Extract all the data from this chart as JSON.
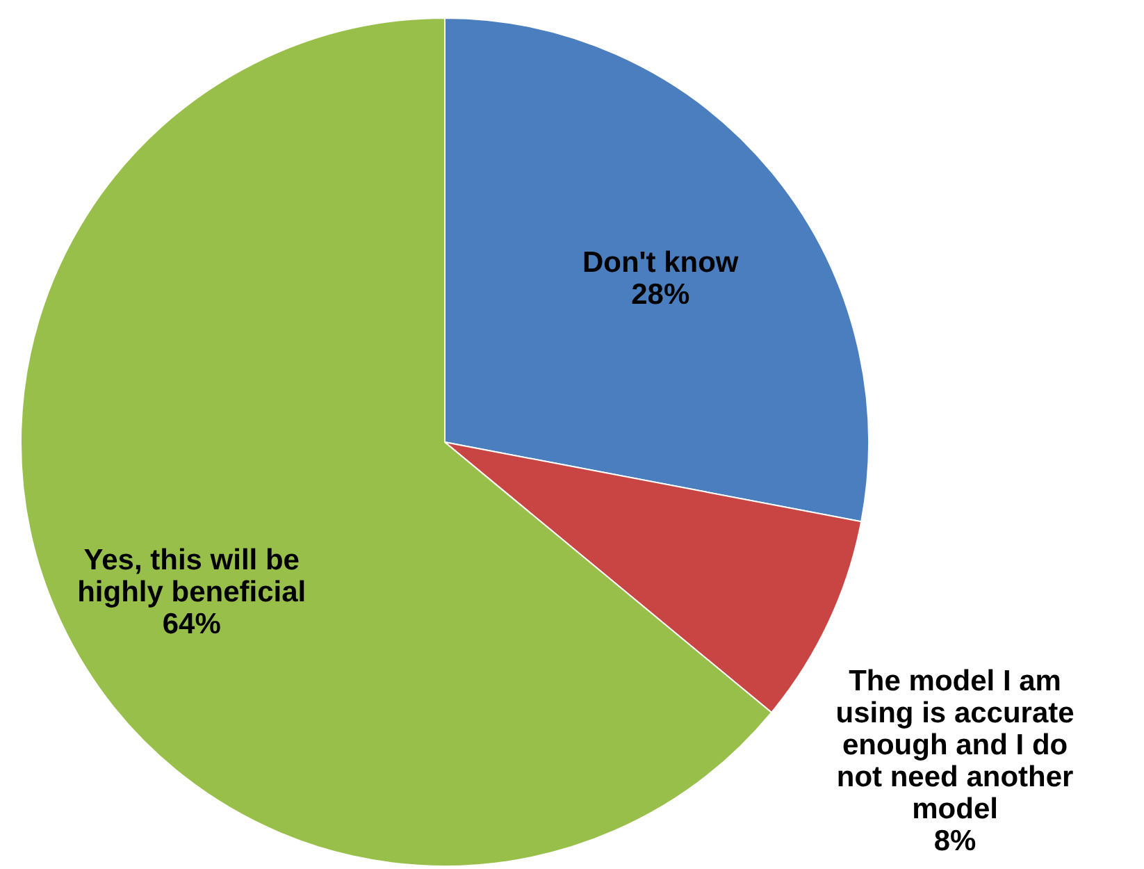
{
  "chart_data": {
    "type": "pie",
    "categories": [
      "Don't know",
      "The model I am using is accurate enough and I do not need another model",
      "Yes, this will be highly beneficial"
    ],
    "values": [
      28,
      8,
      64
    ],
    "value_labels": [
      "28%",
      "8%",
      "64%"
    ],
    "colors": [
      "#4a7ebf",
      "#c94543",
      "#98bf4a"
    ]
  }
}
